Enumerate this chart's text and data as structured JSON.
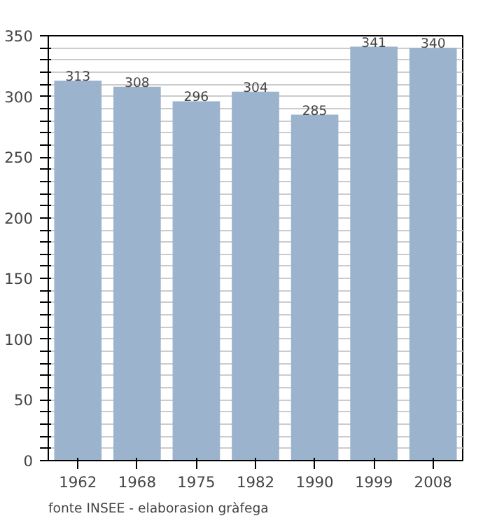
{
  "chart_data": {
    "type": "bar",
    "categories": [
      "1962",
      "1968",
      "1975",
      "1982",
      "1990",
      "1999",
      "2008"
    ],
    "values": [
      313,
      308,
      296,
      304,
      285,
      341,
      340
    ],
    "color": "#9bb3cc",
    "data_labels": true,
    "ylim": [
      0,
      350
    ],
    "yticks": [
      0,
      {
        "value": 10,
        "label": null
      },
      {
        "value": 20,
        "label": null
      },
      {
        "value": 30,
        "label": null
      },
      {
        "value": 40,
        "label": null
      },
      50,
      {
        "value": 60,
        "label": null
      },
      {
        "value": 70,
        "label": null
      },
      {
        "value": 80,
        "label": null
      },
      {
        "value": 90,
        "label": null
      },
      100,
      {
        "value": 110,
        "label": null
      },
      {
        "value": 120,
        "label": null
      },
      {
        "value": 130,
        "label": null
      },
      {
        "value": 140,
        "label": null
      },
      150,
      {
        "value": 160,
        "label": null
      },
      {
        "value": 170,
        "label": null
      },
      {
        "value": 180,
        "label": null
      },
      {
        "value": 190,
        "label": null
      },
      200,
      {
        "value": 210,
        "label": null
      },
      {
        "value": 220,
        "label": null
      },
      {
        "value": 230,
        "label": null
      },
      {
        "value": 240,
        "label": null
      },
      250,
      {
        "value": 260,
        "label": null
      },
      {
        "value": 270,
        "label": null
      },
      {
        "value": 280,
        "label": null
      },
      {
        "value": 290,
        "label": null
      },
      300,
      {
        "value": 310,
        "label": null
      },
      {
        "value": 320,
        "label": null
      },
      {
        "value": 330,
        "label": null
      },
      {
        "value": 340,
        "label": null
      },
      350
    ],
    "grid": "y",
    "annotations": [
      "fonte INSEE - elaborasion gràfega"
    ]
  }
}
